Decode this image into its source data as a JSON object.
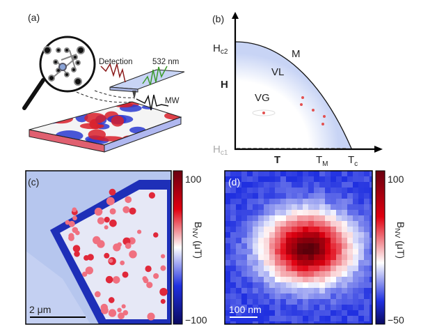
{
  "panel_a": {
    "label": "(a)",
    "detection": "Detection",
    "laser": "532 nm",
    "mw": "MW"
  },
  "panel_b": {
    "label": "(b)",
    "hc2_main": "H",
    "hc2_sub": "c2",
    "hc1_main": "H",
    "hc1_sub": "c1",
    "y_axis": "H",
    "x_axis": "T",
    "tm_main": "T",
    "tm_sub": "M",
    "tc_main": "T",
    "tc_sub": "c",
    "region_m": "M",
    "region_vl": "VL",
    "region_vg": "VG"
  },
  "panel_c": {
    "label": "(c)",
    "scalebar": "2 μm",
    "cbar_max": "100",
    "cbar_min": "−100",
    "cbar_label_main": "B",
    "cbar_label_sub": "NV",
    "cbar_units": " (μT)"
  },
  "panel_d": {
    "label": "(d)",
    "scalebar": "100 nm",
    "cbar_max": "100",
    "cbar_min": "−50",
    "cbar_label_main": "B",
    "cbar_label_sub": "NV",
    "cbar_units": " (μT)"
  },
  "colors": {
    "red": "#c0001a",
    "blue": "#1a1aa0",
    "white": "#ffffff",
    "vl_fill": "#c8d4f5"
  }
}
